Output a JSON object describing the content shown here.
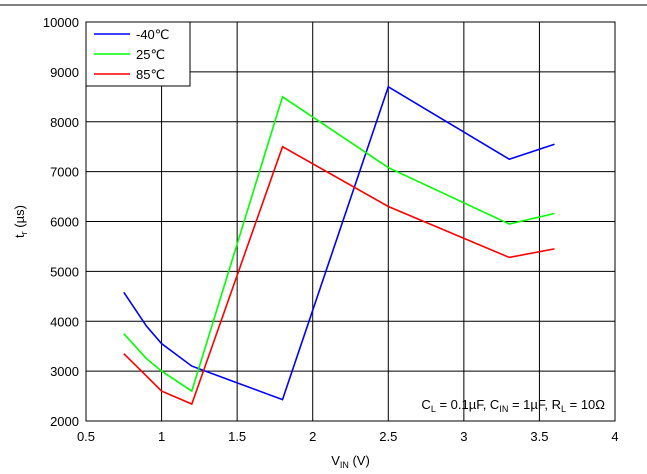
{
  "chart_data": {
    "type": "line",
    "xlabel": {
      "main": "V",
      "sub": "IN",
      "unit": " (V)"
    },
    "ylabel": {
      "main": "t",
      "sub": "r",
      "unit": " (µs)"
    },
    "xlim": [
      0.5,
      4
    ],
    "ylim": [
      2000,
      10000
    ],
    "xticks": [
      "0.5",
      "1",
      "1.5",
      "2",
      "2.5",
      "3",
      "3.5",
      "4"
    ],
    "xtick_values": [
      0.5,
      1,
      1.5,
      2,
      2.5,
      3,
      3.5,
      4
    ],
    "yticks": [
      "2000",
      "3000",
      "4000",
      "5000",
      "6000",
      "7000",
      "8000",
      "9000",
      "10000"
    ],
    "ytick_values": [
      2000,
      3000,
      4000,
      5000,
      6000,
      7000,
      8000,
      9000,
      10000
    ],
    "grid": true,
    "legend_position": "top-left",
    "series": [
      {
        "name": "-40℃",
        "color": "#0000ff",
        "x": [
          0.75,
          0.9,
          1.0,
          1.2,
          1.8,
          2.5,
          3.3,
          3.6
        ],
        "y": [
          4580,
          3900,
          3550,
          3100,
          2430,
          8700,
          7250,
          7550
        ]
      },
      {
        "name": "25℃",
        "color": "#00ff00",
        "x": [
          0.75,
          0.9,
          1.0,
          1.2,
          1.8,
          2.5,
          3.3,
          3.6
        ],
        "y": [
          3750,
          3250,
          3000,
          2600,
          8500,
          7080,
          5950,
          6160
        ]
      },
      {
        "name": "85℃",
        "color": "#ff0000",
        "x": [
          0.75,
          0.9,
          1.0,
          1.2,
          1.8,
          2.5,
          3.3,
          3.6
        ],
        "y": [
          3350,
          2900,
          2600,
          2340,
          7500,
          6300,
          5280,
          5450
        ]
      }
    ],
    "annotation": {
      "parts": [
        {
          "t": "C"
        },
        {
          "t": "L",
          "sub": true
        },
        {
          "t": " = 0.1µF, C"
        },
        {
          "t": "IN",
          "sub": true
        },
        {
          "t": " = 1µF, R"
        },
        {
          "t": "L",
          "sub": true
        },
        {
          "t": " = 10Ω"
        }
      ],
      "position": "bottom-right"
    }
  }
}
